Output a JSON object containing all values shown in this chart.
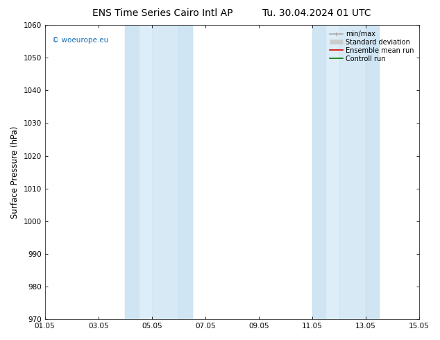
{
  "title_left": "ENS Time Series Cairo Intl AP",
  "title_right": "Tu. 30.04.2024 01 UTC",
  "ylabel": "Surface Pressure (hPa)",
  "ylim": [
    970,
    1060
  ],
  "yticks": [
    970,
    980,
    990,
    1000,
    1010,
    1020,
    1030,
    1040,
    1050,
    1060
  ],
  "xlim_start": 0,
  "xlim_end": 14,
  "xtick_positions": [
    0,
    2,
    4,
    6,
    8,
    10,
    12,
    14
  ],
  "xtick_labels": [
    "01.05",
    "03.05",
    "05.05",
    "07.05",
    "09.05",
    "11.05",
    "13.05",
    "15.05"
  ],
  "shade_bands": [
    {
      "xmin": 3.0,
      "xmax": 3.5
    },
    {
      "xmin": 3.5,
      "xmax": 5.0
    },
    {
      "xmin": 5.0,
      "xmax": 5.5
    },
    {
      "xmin": 10.0,
      "xmax": 10.5
    },
    {
      "xmin": 10.5,
      "xmax": 12.0
    },
    {
      "xmin": 12.0,
      "xmax": 12.5
    }
  ],
  "shade_bands_simple": [
    {
      "xmin": 3.0,
      "xmax": 5.5
    },
    {
      "xmin": 10.0,
      "xmax": 12.5
    }
  ],
  "shade_color": "#ddeef8",
  "shade_color_dark": "#c8e0f0",
  "background_color": "#ffffff",
  "plot_bg_color": "#ffffff",
  "watermark": "© woeurope.eu",
  "watermark_color": "#1a6fb5",
  "legend_items": [
    {
      "label": "min/max",
      "color": "#aaaaaa",
      "lw": 1.2
    },
    {
      "label": "Standard deviation",
      "color": "#cccccc",
      "lw": 5
    },
    {
      "label": "Ensemble mean run",
      "color": "#dd0000",
      "lw": 1.2
    },
    {
      "label": "Controll run",
      "color": "#007700",
      "lw": 1.2
    }
  ],
  "title_fontsize": 10,
  "tick_fontsize": 7.5,
  "ylabel_fontsize": 8.5,
  "figsize": [
    6.34,
    4.9
  ],
  "dpi": 100
}
